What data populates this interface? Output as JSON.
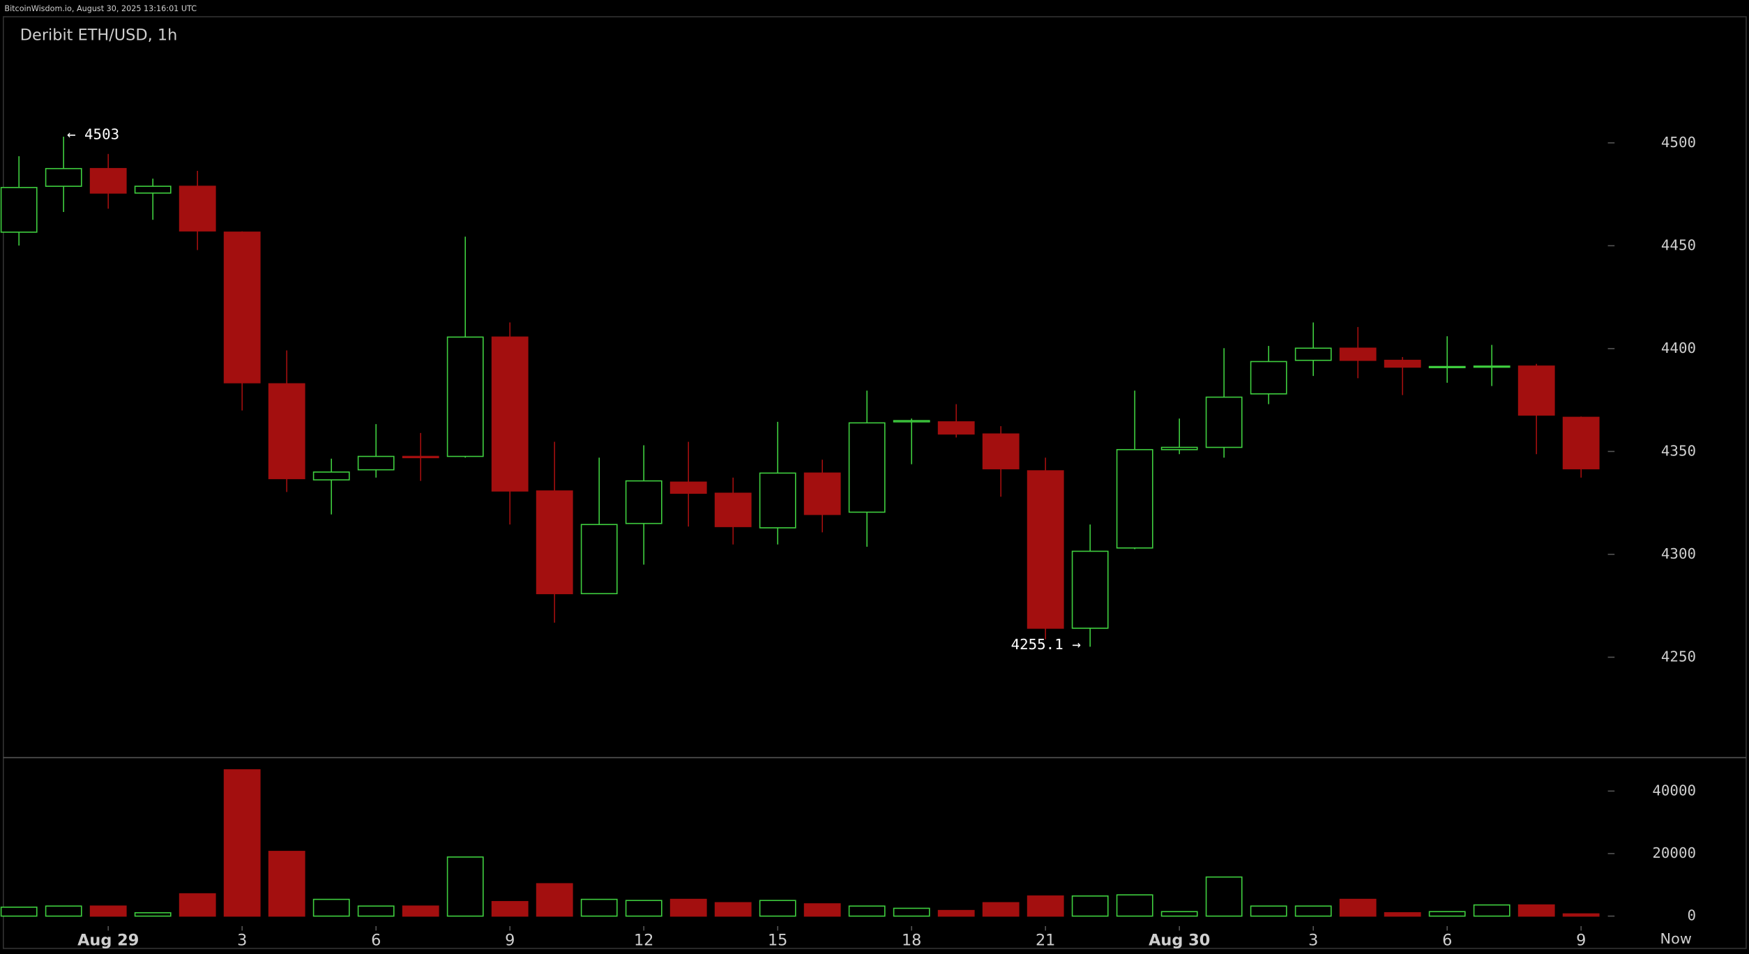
{
  "header": {
    "source": "BitcoinWisdom.io, August 30, 2025 13:16:01 UTC"
  },
  "chart_data": [
    {
      "type": "candlestick",
      "title": "Deribit ETH/USD, 1h",
      "up_color": "#3fcf3f",
      "down_color": "#a30f0f",
      "open": [
        4456.6,
        4478.9,
        4487.5,
        4475.6,
        4478.9,
        4456.6,
        4382.9,
        4336.2,
        4341.1,
        4347.6,
        4347.6,
        4405.6,
        4330.8,
        4280.9,
        4315,
        4335.1,
        4329.7,
        4312.9,
        4339.5,
        4320.5,
        4364.4,
        4364.4,
        4358.5,
        4340.6,
        4264.1,
        4303.1,
        4350.9,
        4352,
        4378,
        4394.3,
        4400.2,
        4394.3,
        4391,
        4391.3,
        4391.5,
        4366.6
      ],
      "high": [
        4493.5,
        4503,
        4494.6,
        4482.6,
        4486.4,
        4457,
        4399.1,
        4346.5,
        4363.3,
        4359,
        4454.4,
        4412.7,
        4354.7,
        4347,
        4353,
        4354.7,
        4337.3,
        4364.4,
        4346,
        4379.6,
        4366,
        4373,
        4362.3,
        4347,
        4314.5,
        4379.6,
        4366,
        4400.2,
        4401.3,
        4412.7,
        4410.5,
        4395.9,
        4406,
        4401.8,
        4392.6,
        4367
      ],
      "low": [
        4450.1,
        4466.4,
        4468,
        4462.6,
        4447.9,
        4369.9,
        4330.3,
        4319.4,
        4337.3,
        4335.7,
        4347,
        4314.5,
        4266.8,
        4280.9,
        4295,
        4313.5,
        4304.8,
        4304.8,
        4310.7,
        4303.7,
        4343.8,
        4356.8,
        4328,
        4258.7,
        4255.1,
        4302.5,
        4348.7,
        4347,
        4373,
        4386.7,
        4385.6,
        4377.4,
        4383.4,
        4381.8,
        4348.7,
        4337.3
      ],
      "close": [
        4478.3,
        4487.5,
        4475.6,
        4478.9,
        4457.2,
        4383.4,
        4336.8,
        4340,
        4347.6,
        4347,
        4405.6,
        4330.8,
        4280.9,
        4314.5,
        4335.7,
        4329.7,
        4313.5,
        4339.5,
        4319.4,
        4363.9,
        4365,
        4358.5,
        4341.6,
        4264.1,
        4301.5,
        4350.9,
        4352,
        4376.4,
        4393.7,
        4400.2,
        4394.3,
        4391,
        4391.3,
        4391.5,
        4367.7,
        4341.6
      ],
      "ylim": [
        4201.2,
        4561.3
      ],
      "yticks": [
        4250,
        4300,
        4350,
        4400,
        4450,
        4500
      ],
      "annotations": [
        {
          "text": "← 4503"
        },
        {
          "text": "4255.1 →"
        }
      ]
    },
    {
      "type": "bar",
      "name": "volume",
      "categories": [
        null,
        null,
        "Aug 29",
        null,
        null,
        "3",
        null,
        null,
        "6",
        null,
        null,
        "9",
        null,
        null,
        "12",
        null,
        null,
        "15",
        null,
        null,
        "18",
        null,
        null,
        "21",
        null,
        null,
        "Aug 30",
        null,
        null,
        "3",
        null,
        null,
        "6",
        null,
        null,
        "9"
      ],
      "values": [
        2860,
        3210,
        3210,
        1070,
        7140,
        46800,
        20700,
        5360,
        3210,
        3210,
        18900,
        4640,
        10360,
        5360,
        5000,
        5360,
        4290,
        5000,
        3930,
        3210,
        2500,
        1790,
        4290,
        6430,
        6430,
        6790,
        1430,
        12500,
        3210,
        3210,
        5360,
        1070,
        1430,
        3570,
        3570,
        710
      ],
      "ylim": [
        -3200,
        50700
      ],
      "yticks": [
        0,
        20000,
        40000
      ],
      "now_label": "Now"
    }
  ]
}
